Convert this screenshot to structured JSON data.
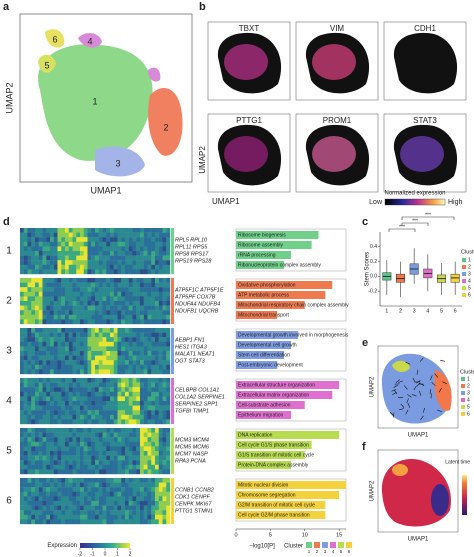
{
  "panel_labels": [
    "a",
    "b",
    "c",
    "d",
    "e",
    "f"
  ],
  "panel_a": {
    "xlabel": "UMAP1",
    "ylabel": "UMAP2",
    "cluster_labels": [
      "1",
      "2",
      "3",
      "4",
      "5",
      "6"
    ]
  },
  "panel_b": {
    "genes": [
      "TBXT",
      "VIM",
      "CDH1",
      "PTTG1",
      "PROM1",
      "STAT3"
    ],
    "xlabel": "UMAP1",
    "ylabel": "UMAP2",
    "colorbar": {
      "title": "Normalized expression",
      "low": "Low",
      "high": "High"
    }
  },
  "heatmap": {
    "clusters": [
      "1",
      "2",
      "3",
      "4",
      "5",
      "6"
    ],
    "genes": [
      [
        "RPL5 RPL10",
        "RPL11 RPS5",
        "RPS8 RPS17",
        "RPS19 RPS28"
      ],
      [
        "ATP5F1C ATP5F1E",
        "ATP5PF COX7B",
        "NDUFA4 NDUFB4",
        "NDUFB1 UQCRB"
      ],
      [
        "AEBP1 FN1",
        "HES1 ITGA3",
        "MALAT1 NEAT1",
        "OGT STAT3"
      ],
      [
        "CELBPB COL1A1",
        "COL1A2 SERPINE1",
        "SERPINE2 SPP1",
        "TGFBI TIMP1"
      ],
      [
        "MCM3 MCM4",
        "MCM5 MCM6",
        "MCM7 NASP",
        "RPA3 PCNA"
      ],
      [
        "CCNB1 CCNB2",
        "CDK1 CENPF",
        "CENPK MKI67",
        "PTTG1 STMN1"
      ]
    ],
    "colorbar": {
      "title": "Expression",
      "ticks": [
        -2,
        -1,
        0,
        1,
        2
      ]
    }
  },
  "chart_data": [
    {
      "type": "box",
      "ylabel": "Stem Scores",
      "categories": [
        "1",
        "2",
        "3",
        "4",
        "5",
        "6"
      ],
      "colors": [
        "#5cc38a",
        "#f2784b",
        "#7b9be0",
        "#e06cc8",
        "#c9d94a",
        "#f2d23c"
      ],
      "whisker_low": [
        -0.25,
        -0.28,
        -0.1,
        -0.2,
        -0.25,
        -0.25
      ],
      "q1": [
        -0.05,
        -0.08,
        0.03,
        -0.02,
        -0.08,
        -0.08
      ],
      "median": [
        0.0,
        -0.03,
        0.1,
        0.04,
        -0.03,
        -0.02
      ],
      "q3": [
        0.05,
        0.03,
        0.17,
        0.1,
        0.02,
        0.03
      ],
      "whisker_high": [
        0.22,
        0.2,
        0.38,
        0.3,
        0.18,
        0.2
      ],
      "ylim": [
        -0.4,
        0.6
      ],
      "yticks": [
        -0.2,
        {
          "value": 0,
          "label": "0.0"
        },
        0.2,
        0.4
      ],
      "legend_title": "Cluster",
      "annotations": [
        "***",
        "***",
        "***"
      ]
    },
    {
      "type": "hbar",
      "xlabel": "−log10[P]",
      "xlim": [
        0,
        16
      ],
      "xticks": [
        0,
        5,
        10,
        15
      ],
      "legend_title": "Cluster",
      "series": [
        {
          "name": "1",
          "color": "#6fd08a",
          "categories": [
            "Ribosome biogenesis",
            "Ribosome assembly",
            "rRNA processing",
            "Ribonucleoprotein complex assembly"
          ],
          "values": [
            12,
            11,
            8,
            7
          ]
        },
        {
          "name": "2",
          "color": "#f07a50",
          "categories": [
            "Oxidative phosphorylation",
            "ATP metabolic process",
            "Mitochondrial respiratory chain complex assembly",
            "Mitochondrial transport"
          ],
          "values": [
            14,
            13,
            10,
            6
          ]
        },
        {
          "name": "3",
          "color": "#7f9de2",
          "categories": [
            "Developmental growth involved in morphogenesis",
            "Developmental cell growth",
            "Stem cell differentiation",
            "Post-embryonic development"
          ],
          "values": [
            9,
            8,
            7,
            6
          ]
        },
        {
          "name": "4",
          "color": "#e070d0",
          "categories": [
            "Extracellular structure organization",
            "Extracellular matrix organization",
            "Cell-substrate adhesion",
            "Epithelium migration"
          ],
          "values": [
            15,
            14,
            10,
            8
          ]
        },
        {
          "name": "5",
          "color": "#b8dc50",
          "categories": [
            "DNA replication",
            "Cell cycle G1/S phase transition",
            "G1/S transition of mitotic cell cycle",
            "Protein-DNA complex assembly"
          ],
          "values": [
            15,
            11,
            10,
            8
          ]
        },
        {
          "name": "6",
          "color": "#f4d23c",
          "categories": [
            "Mitotic nuclear division",
            "Chromosome segregation",
            "G2/M transition of mitotic cell cycle",
            "Cell cycle G2/M phase transition"
          ],
          "values": [
            16,
            15,
            13,
            13
          ]
        }
      ]
    }
  ],
  "panel_e": {
    "xlabel": "UMAP1",
    "ylabel": "UMAP2",
    "legend_title": "Cluster",
    "labels": [
      "1",
      "2",
      "3",
      "4",
      "5",
      "6"
    ]
  },
  "panel_f": {
    "xlabel": "UMAP1",
    "ylabel": "UMAP2",
    "colorbar_title": "Latent time"
  }
}
